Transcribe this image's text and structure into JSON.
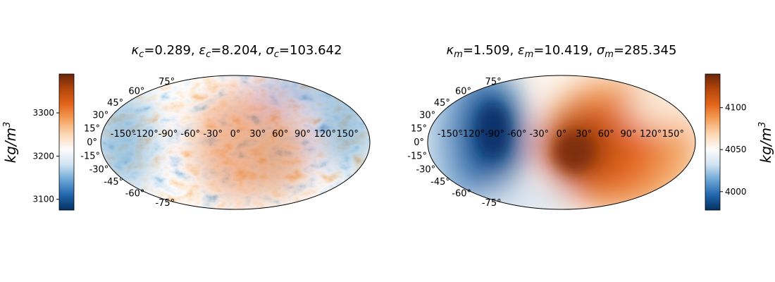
{
  "chart_data": [
    {
      "type": "heatmap",
      "projection": "mollweide",
      "title": "κ_c=0.289, ε_c=8.204, σ_c=103.642",
      "title_parts": [
        {
          "sym": "κ",
          "sub": "c",
          "val": "=0.289, "
        },
        {
          "sym": "ε",
          "sub": "c",
          "val": "=8.204, "
        },
        {
          "sym": "σ",
          "sub": "c",
          "val": "=103.642"
        }
      ],
      "lon_ticks": [
        "-150°",
        "-120°",
        "-90°",
        "-60°",
        "-30°",
        "0°",
        "30°",
        "60°",
        "90°",
        "120°",
        "150°"
      ],
      "lat_ticks": [
        "75°",
        "60°",
        "45°",
        "30°",
        "15°",
        "0°",
        "-15°",
        "-30°",
        "-45°",
        "-60°",
        "-75°"
      ],
      "colorbar": {
        "position": "left",
        "label": "kg/m³",
        "label_base": "kg/m",
        "label_sup": "3",
        "range": [
          3075,
          3390
        ],
        "ticks": [
          "3100",
          "3200",
          "3300"
        ],
        "tick_values": [
          3100,
          3200,
          3300
        ],
        "cmap": "blue-white-orange"
      },
      "pattern": "small-scale mottled field: orange concentrations near 0°–90° longitude, blue around ±120°–180° longitude"
    },
    {
      "type": "heatmap",
      "projection": "mollweide",
      "title": "κ_m=1.509, ε_m=10.419, σ_m=285.345",
      "title_parts": [
        {
          "sym": "κ",
          "sub": "m",
          "val": "=1.509, "
        },
        {
          "sym": "ε",
          "sub": "m",
          "val": "=10.419, "
        },
        {
          "sym": "σ",
          "sub": "m",
          "val": "=285.345"
        }
      ],
      "lon_ticks": [
        "-150°",
        "-120°",
        "-90°",
        "-60°",
        "-30°",
        "0°",
        "30°",
        "60°",
        "90°",
        "120°",
        "150°"
      ],
      "lat_ticks": [
        "75°",
        "60°",
        "45°",
        "30°",
        "15°",
        "0°",
        "-15°",
        "-30°",
        "-45°",
        "-60°",
        "-75°"
      ],
      "colorbar": {
        "position": "right",
        "label": "kg/m³",
        "label_base": "kg/m",
        "label_sup": "3",
        "range": [
          3978,
          4140
        ],
        "ticks": [
          "4000",
          "4050",
          "4100"
        ],
        "tick_values": [
          4000,
          4050,
          4100
        ],
        "cmap": "blue-white-orange"
      },
      "pattern": "large-scale field: dark blue lobe centred near -100° longitude, dark orange maximum centred near 20° longitude"
    }
  ],
  "colors": {
    "cmap_stops": [
      "#053061",
      "#2166ac",
      "#6aa6d6",
      "#cfe2f1",
      "#fbfbfb",
      "#fcd9b5",
      "#f4a15c",
      "#e3641a",
      "#b4460b",
      "#67250a"
    ]
  }
}
